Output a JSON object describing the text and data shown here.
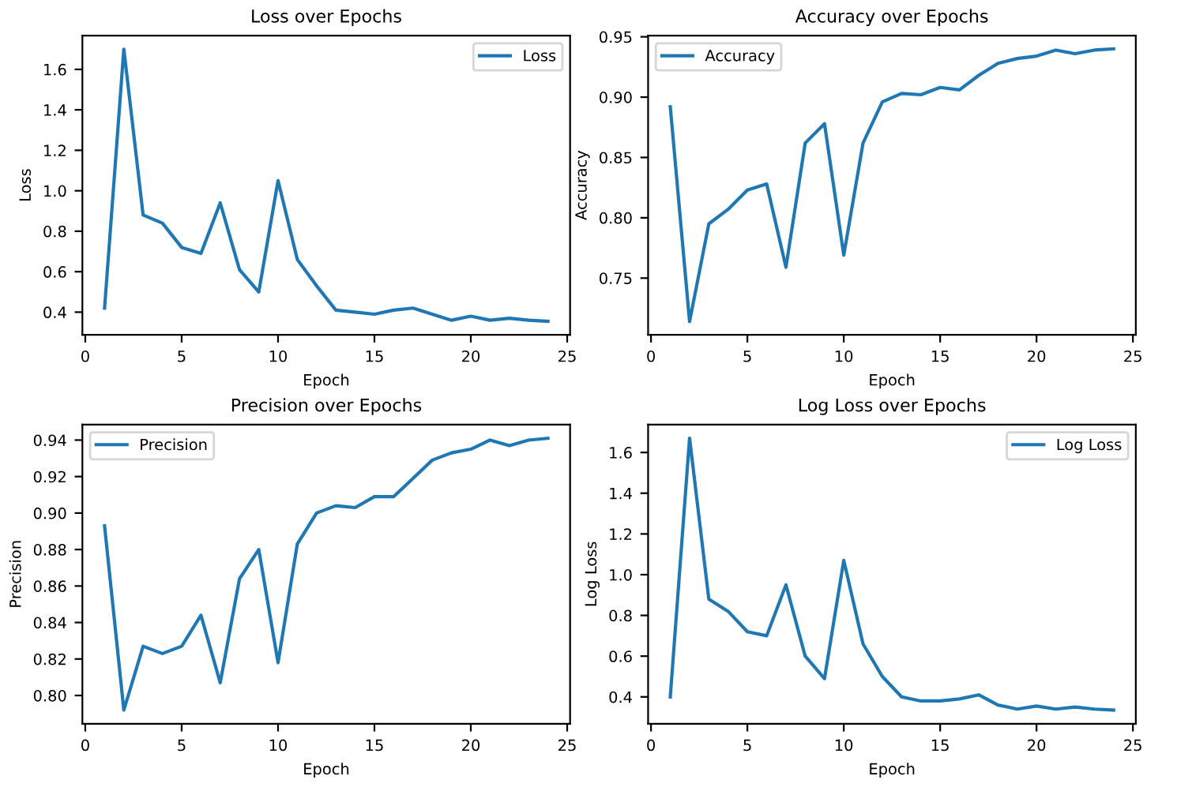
{
  "chart_data": [
    {
      "type": "line",
      "title": "Loss over Epochs",
      "xlabel": "Epoch",
      "ylabel": "Loss",
      "legend": "top right",
      "grid": false,
      "x": [
        1,
        2,
        3,
        4,
        5,
        6,
        7,
        8,
        9,
        10,
        11,
        12,
        13,
        14,
        15,
        16,
        17,
        18,
        19,
        20,
        21,
        22,
        23,
        24
      ],
      "series": [
        {
          "name": "Loss",
          "color": "#1f77b4",
          "values": [
            0.42,
            1.7,
            0.88,
            0.84,
            0.72,
            0.69,
            0.94,
            0.61,
            0.5,
            1.05,
            0.66,
            0.53,
            0.41,
            0.4,
            0.39,
            0.41,
            0.42,
            0.39,
            0.36,
            0.38,
            0.36,
            0.37,
            0.36,
            0.355
          ]
        }
      ],
      "xlim": [
        -0.15,
        25.15
      ],
      "xticks": [
        0,
        5,
        10,
        15,
        20,
        25
      ],
      "ylim": [
        0.288,
        1.767
      ],
      "yticks": [
        0.4,
        0.6,
        0.8,
        {
          "value": 1.0,
          "label": "1.0"
        },
        1.2,
        1.4,
        1.6
      ]
    },
    {
      "type": "line",
      "title": "Accuracy over Epochs",
      "xlabel": "Epoch",
      "ylabel": "Accuracy",
      "legend": "top left",
      "grid": false,
      "x": [
        1,
        2,
        3,
        4,
        5,
        6,
        7,
        8,
        9,
        10,
        11,
        12,
        13,
        14,
        15,
        16,
        17,
        18,
        19,
        20,
        21,
        22,
        23,
        24
      ],
      "series": [
        {
          "name": "Accuracy",
          "color": "#1f77b4",
          "values": [
            0.892,
            0.714,
            0.795,
            0.807,
            0.823,
            0.828,
            0.759,
            0.862,
            0.878,
            0.769,
            0.862,
            0.896,
            0.903,
            0.902,
            0.908,
            0.906,
            0.918,
            0.928,
            0.932,
            0.934,
            0.939,
            0.936,
            0.939,
            0.94
          ]
        }
      ],
      "xlim": [
        -0.15,
        25.15
      ],
      "xticks": [
        0,
        5,
        10,
        15,
        20,
        25
      ],
      "ylim": [
        0.703,
        0.951
      ],
      "yticks": [
        0.75,
        {
          "value": 0.8,
          "label": "0.80"
        },
        0.85,
        {
          "value": 0.9,
          "label": "0.90"
        },
        0.95
      ]
    },
    {
      "type": "line",
      "title": "Precision over Epochs",
      "xlabel": "Epoch",
      "ylabel": "Precision",
      "legend": "top left",
      "grid": false,
      "x": [
        1,
        2,
        3,
        4,
        5,
        6,
        7,
        8,
        9,
        10,
        11,
        12,
        13,
        14,
        15,
        16,
        17,
        18,
        19,
        20,
        21,
        22,
        23,
        24
      ],
      "series": [
        {
          "name": "Precision",
          "color": "#1f77b4",
          "values": [
            0.893,
            0.792,
            0.827,
            0.823,
            0.827,
            0.844,
            0.807,
            0.864,
            0.88,
            0.818,
            0.883,
            0.9,
            0.904,
            0.903,
            0.909,
            0.909,
            0.919,
            0.929,
            0.933,
            0.935,
            0.94,
            0.937,
            0.94,
            0.941
          ]
        }
      ],
      "xlim": [
        -0.15,
        25.15
      ],
      "xticks": [
        0,
        5,
        10,
        15,
        20,
        25
      ],
      "ylim": [
        0.7845,
        0.9485
      ],
      "yticks": [
        {
          "value": 0.8,
          "label": "0.80"
        },
        0.82,
        0.84,
        0.86,
        0.88,
        {
          "value": 0.9,
          "label": "0.90"
        },
        0.92,
        0.94
      ]
    },
    {
      "type": "line",
      "title": "Log Loss over Epochs",
      "xlabel": "Epoch",
      "ylabel": "Log Loss",
      "legend": "top right",
      "grid": false,
      "x": [
        1,
        2,
        3,
        4,
        5,
        6,
        7,
        8,
        9,
        10,
        11,
        12,
        13,
        14,
        15,
        16,
        17,
        18,
        19,
        20,
        21,
        22,
        23,
        24
      ],
      "series": [
        {
          "name": "Log Loss",
          "color": "#1f77b4",
          "values": [
            0.4,
            1.67,
            0.88,
            0.82,
            0.72,
            0.7,
            0.95,
            0.6,
            0.49,
            1.07,
            0.66,
            0.5,
            0.4,
            0.38,
            0.38,
            0.39,
            0.41,
            0.36,
            0.34,
            0.355,
            0.34,
            0.35,
            0.34,
            0.335
          ]
        }
      ],
      "xlim": [
        -0.15,
        25.15
      ],
      "xticks": [
        0,
        5,
        10,
        15,
        20,
        25
      ],
      "ylim": [
        0.268,
        1.737
      ],
      "yticks": [
        0.4,
        0.6,
        0.8,
        {
          "value": 1.0,
          "label": "1.0"
        },
        1.2,
        1.4,
        1.6
      ]
    }
  ]
}
